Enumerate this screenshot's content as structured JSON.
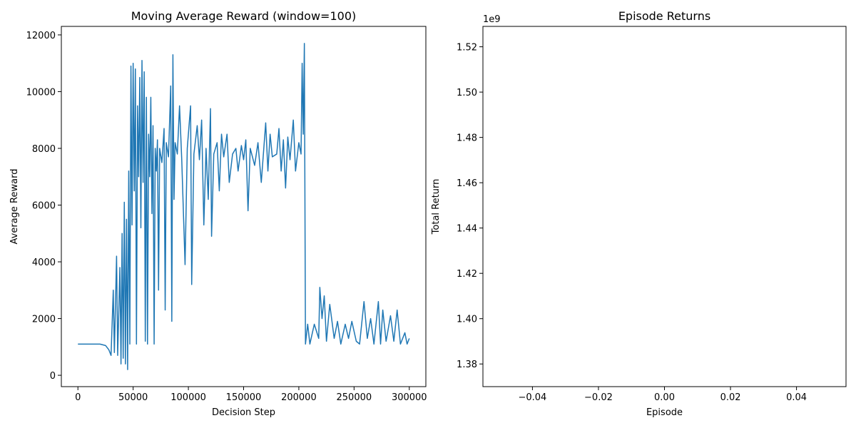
{
  "chart_data": [
    {
      "type": "line",
      "title": "Moving Average Reward (window=100)",
      "x_label": "Decision Step",
      "y_label": "Average Reward",
      "xlim": [
        -15000,
        315000
      ],
      "ylim": [
        -400,
        12300
      ],
      "xticks": [
        0,
        50000,
        100000,
        150000,
        200000,
        250000,
        300000
      ],
      "yticks": [
        0,
        2000,
        4000,
        6000,
        8000,
        10000,
        12000
      ],
      "x": [
        0,
        20000,
        25000,
        28000,
        30000,
        32000,
        33000,
        35000,
        36000,
        38000,
        39000,
        40000,
        41000,
        42000,
        43000,
        44000,
        45000,
        46000,
        47000,
        48000,
        49000,
        50000,
        51000,
        52000,
        53000,
        54000,
        55000,
        56000,
        57000,
        58000,
        59000,
        60000,
        61000,
        62000,
        63000,
        64000,
        65000,
        66000,
        67000,
        68000,
        69000,
        70000,
        71000,
        72000,
        73000,
        74000,
        76000,
        78000,
        79000,
        80000,
        82000,
        84000,
        85000,
        86000,
        87000,
        88000,
        90000,
        92000,
        94000,
        97000,
        99000,
        102000,
        103000,
        105000,
        108000,
        110000,
        112000,
        114000,
        116000,
        118000,
        120000,
        121000,
        123000,
        126000,
        128000,
        130000,
        132000,
        135000,
        137000,
        140000,
        143000,
        145000,
        148000,
        150000,
        152000,
        154000,
        156000,
        160000,
        163000,
        166000,
        170000,
        172000,
        174000,
        176000,
        180000,
        182000,
        184000,
        186000,
        188000,
        190000,
        192000,
        195000,
        197000,
        200000,
        202000,
        203000,
        204000,
        205000,
        206000,
        208000,
        210000,
        214000,
        218000,
        219000,
        221000,
        223000,
        225000,
        228000,
        232000,
        235000,
        238000,
        242000,
        245000,
        248000,
        252000,
        255000,
        259000,
        262000,
        265000,
        268000,
        272000,
        274000,
        276000,
        279000,
        283000,
        286000,
        289000,
        292000,
        296000,
        298000,
        300000
      ],
      "series": [
        {
          "color": "#1f77b4",
          "values": [
            1100,
            1100,
            1050,
            900,
            700,
            3000,
            800,
            4200,
            700,
            3800,
            400,
            5000,
            600,
            6100,
            400,
            5500,
            200,
            7200,
            1100,
            10900,
            5300,
            11000,
            6500,
            10800,
            1100,
            9500,
            7000,
            10500,
            5200,
            11100,
            6800,
            10700,
            1200,
            9800,
            1100,
            8500,
            7000,
            9800,
            5700,
            8800,
            1100,
            8000,
            7200,
            8300,
            3000,
            8000,
            7500,
            8700,
            2300,
            8200,
            7700,
            10200,
            1900,
            11300,
            6200,
            8200,
            7800,
            9500,
            7600,
            3900,
            8000,
            9500,
            3200,
            7800,
            8800,
            7600,
            9000,
            5300,
            8000,
            6200,
            9400,
            4900,
            7800,
            8200,
            6500,
            8500,
            7700,
            8500,
            6800,
            7800,
            8000,
            7200,
            8100,
            7600,
            8300,
            5800,
            8000,
            7400,
            8200,
            6800,
            8900,
            7200,
            8500,
            7700,
            7800,
            8700,
            7200,
            8300,
            6600,
            8400,
            7600,
            9000,
            7200,
            8200,
            7800,
            11000,
            8500,
            11700,
            1100,
            1800,
            1100,
            1800,
            1300,
            3100,
            2000,
            2800,
            1200,
            2500,
            1300,
            1900,
            1100,
            1800,
            1300,
            1900,
            1200,
            1100,
            2600,
            1300,
            2000,
            1100,
            2600,
            1100,
            2300,
            1200,
            2100,
            1200,
            2300,
            1100,
            1500,
            1100,
            1300
          ]
        }
      ]
    },
    {
      "type": "line",
      "title": "Episode Returns",
      "x_label": "Episode",
      "y_label": "Total Return",
      "y_offset_label": "1e9",
      "xlim": [
        -0.055,
        0.055
      ],
      "ylim": [
        1370000000,
        1529000000
      ],
      "xticks": [
        {
          "value": -0.04,
          "label": "−0.04"
        },
        {
          "value": -0.02,
          "label": "−0.02"
        },
        {
          "value": 0,
          "label": "0.00"
        },
        0.02,
        0.04
      ],
      "yticks": [
        {
          "value": 1380000000,
          "label": "1.38"
        },
        {
          "value": 1400000000,
          "label": "1.40"
        },
        {
          "value": 1420000000,
          "label": "1.42"
        },
        {
          "value": 1440000000,
          "label": "1.44"
        },
        {
          "value": 1460000000,
          "label": "1.46"
        },
        {
          "value": 1480000000,
          "label": "1.48"
        },
        {
          "value": 1500000000,
          "label": "1.50"
        },
        {
          "value": 1520000000,
          "label": "1.52"
        }
      ]
    }
  ]
}
